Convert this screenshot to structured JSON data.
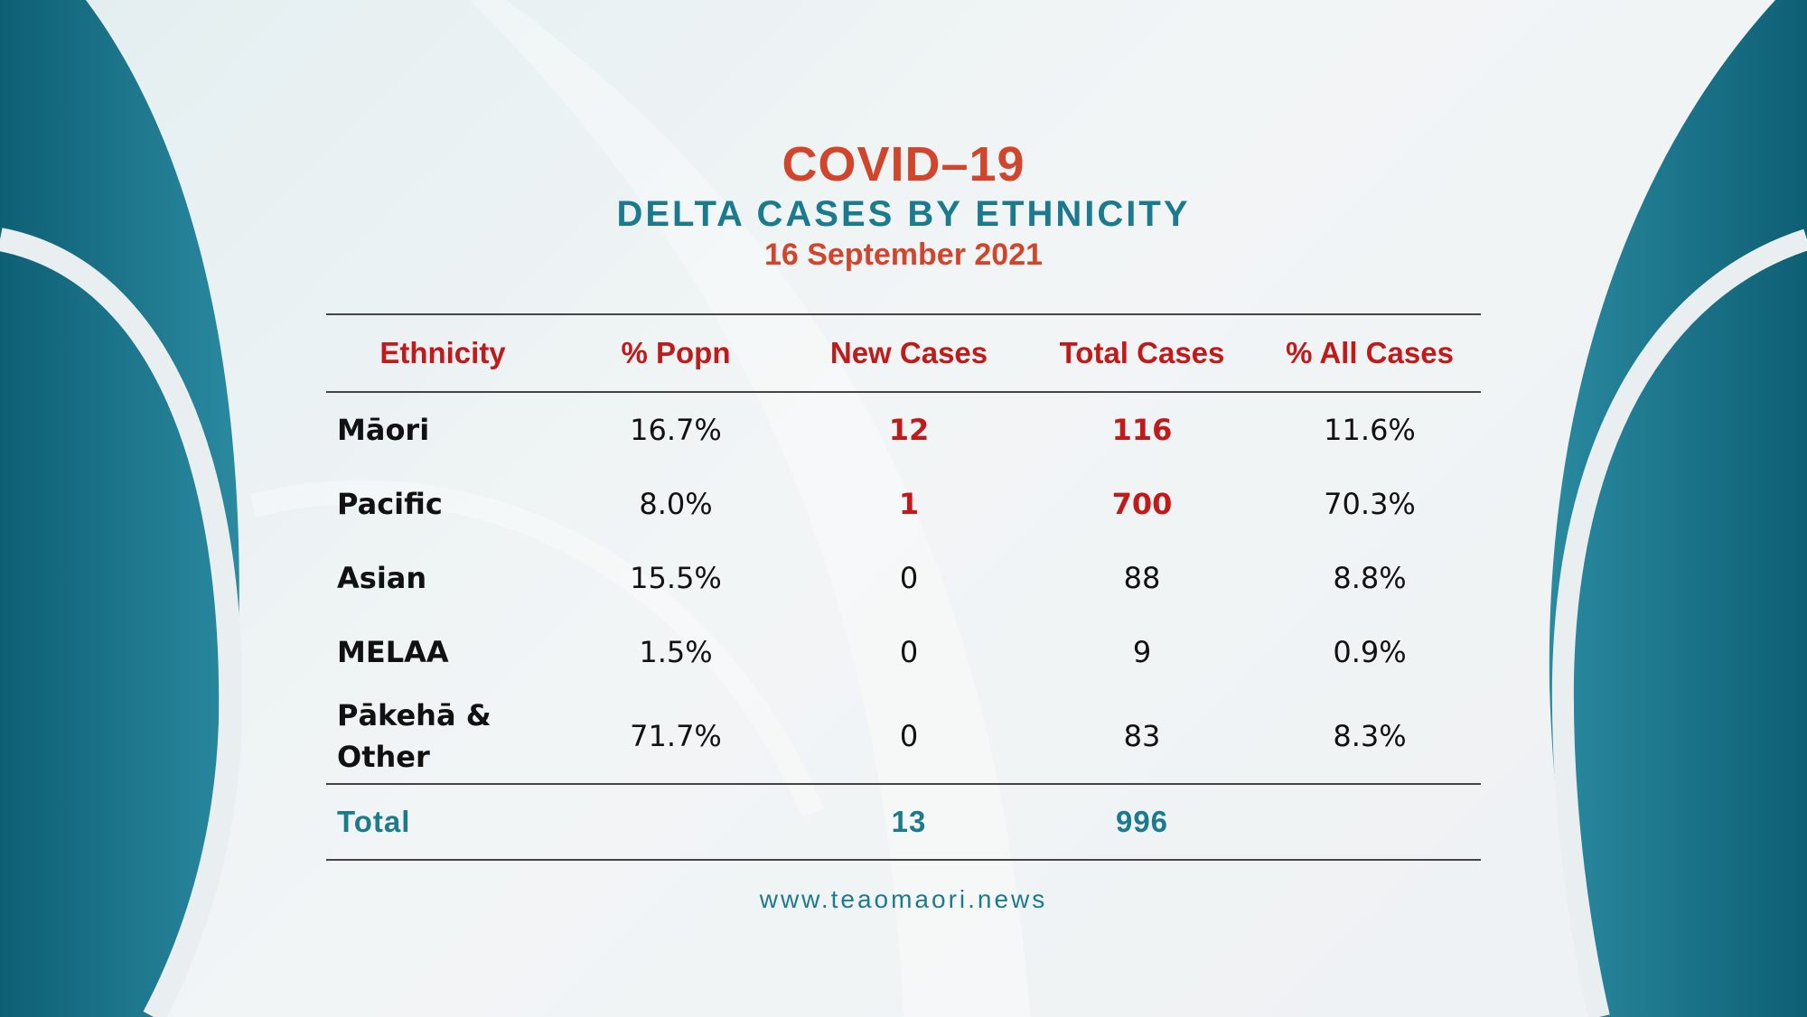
{
  "header": {
    "title": "COVID–19",
    "subtitle": "DELTA CASES BY ETHNICITY",
    "date": "16 September 2021"
  },
  "colors": {
    "title_red": "#d0452b",
    "teal": "#1c7a8e",
    "dark_teal": "#0e5f74",
    "highlight_red": "#c01a1a"
  },
  "chart_data": {
    "type": "table",
    "title": "DELTA CASES BY ETHNICITY",
    "columns": [
      "Ethnicity",
      "% Popn",
      "New Cases",
      "Total Cases",
      "% All Cases"
    ],
    "rows": [
      {
        "ethnicity_line1": "Māori",
        "ethnicity_line2": "",
        "popn": "16.7%",
        "new_cases": "12",
        "total_cases": "116",
        "all_cases": "11.6%"
      },
      {
        "ethnicity_line1": "Pacific",
        "ethnicity_line2": "",
        "popn": "8.0%",
        "new_cases": "1",
        "total_cases": "700",
        "all_cases": "70.3%"
      },
      {
        "ethnicity_line1": "Asian",
        "ethnicity_line2": "",
        "popn": "15.5%",
        "new_cases": "0",
        "total_cases": "88",
        "all_cases": "8.8%"
      },
      {
        "ethnicity_line1": "MELAA",
        "ethnicity_line2": "",
        "popn": "1.5%",
        "new_cases": "0",
        "total_cases": "9",
        "all_cases": "0.9%"
      },
      {
        "ethnicity_line1": "Pākehā &",
        "ethnicity_line2": "Other",
        "popn": "71.7%",
        "new_cases": "0",
        "total_cases": "83",
        "all_cases": "8.3%"
      }
    ],
    "total": {
      "label": "Total",
      "new_cases": "13",
      "total_cases": "996"
    }
  },
  "footer": {
    "url": "www.teaomaori.news"
  }
}
